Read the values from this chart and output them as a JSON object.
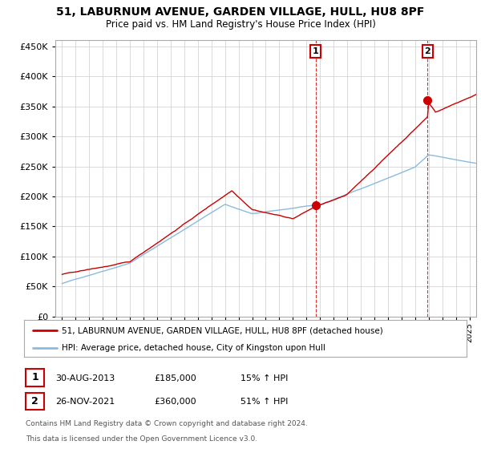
{
  "title": "51, LABURNUM AVENUE, GARDEN VILLAGE, HULL, HU8 8PF",
  "subtitle": "Price paid vs. HM Land Registry's House Price Index (HPI)",
  "ytick_values": [
    0,
    50000,
    100000,
    150000,
    200000,
    250000,
    300000,
    350000,
    400000,
    450000
  ],
  "xlim_start": 1994.5,
  "xlim_end": 2025.5,
  "ylim_min": 0,
  "ylim_max": 460000,
  "sale1_year": 2013.67,
  "sale1_price": 185000,
  "sale2_year": 2021.92,
  "sale2_price": 360000,
  "legend_line1": "51, LABURNUM AVENUE, GARDEN VILLAGE, HULL, HU8 8PF (detached house)",
  "legend_line2": "HPI: Average price, detached house, City of Kingston upon Hull",
  "table_row1_num": "1",
  "table_row1_date": "30-AUG-2013",
  "table_row1_price": "£185,000",
  "table_row1_hpi": "15% ↑ HPI",
  "table_row2_num": "2",
  "table_row2_date": "26-NOV-2021",
  "table_row2_price": "£360,000",
  "table_row2_hpi": "51% ↑ HPI",
  "footnote1": "Contains HM Land Registry data © Crown copyright and database right 2024.",
  "footnote2": "This data is licensed under the Open Government Licence v3.0.",
  "red_color": "#cc0000",
  "blue_color": "#88bbdd",
  "grid_color": "#cccccc",
  "bg_color": "#ffffff"
}
